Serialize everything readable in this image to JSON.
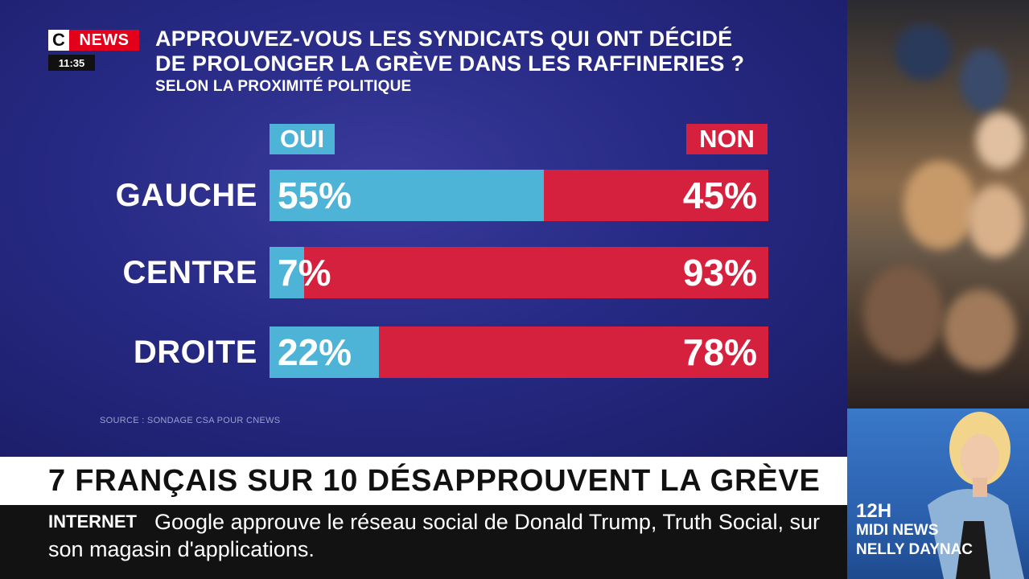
{
  "channel": {
    "logo_c": "C",
    "logo_news": "NEWS",
    "time": "11:35"
  },
  "header": {
    "title_line1": "APPROUVEZ-VOUS LES SYNDICATS QUI ONT DÉCIDÉ",
    "title_line2": "DE PROLONGER LA GRÈVE DANS LES RAFFINERIES ?",
    "subtitle": "SELON LA PROXIMITÉ POLITIQUE"
  },
  "chart_data": {
    "type": "bar",
    "stacked": true,
    "orientation": "horizontal",
    "title": "APPROUVEZ-VOUS LES SYNDICATS QUI ONT DÉCIDÉ DE PROLONGER LA GRÈVE DANS LES RAFFINERIES ?",
    "subtitle": "SELON LA PROXIMITÉ POLITIQUE",
    "categories": [
      "GAUCHE",
      "CENTRE",
      "DROITE"
    ],
    "series": [
      {
        "name": "OUI",
        "values": [
          55,
          7,
          22
        ],
        "labels": [
          "55%",
          "7%",
          "22%"
        ],
        "color": "#4db4d7"
      },
      {
        "name": "NON",
        "values": [
          45,
          93,
          78
        ],
        "labels": [
          "45%",
          "93%",
          "78%"
        ],
        "color": "#d6213e"
      }
    ],
    "xlim": [
      0,
      100
    ],
    "unit": "%",
    "source": "SOURCE : SONDAGE CSA POUR CNEWS"
  },
  "headline": "7 FRANÇAIS SUR 10 DÉSAPPROUVENT LA GRÈVE",
  "ticker": {
    "label": "INTERNET",
    "text": "Google approuve le réseau social de Donald Trump, Truth Social, sur son magasin d'applications."
  },
  "show": {
    "time": "12H",
    "name": "MIDI NEWS",
    "host": "NELLY DAYNAC"
  },
  "colors": {
    "brand_red": "#e3001b",
    "oui": "#4db4d7",
    "non": "#d6213e",
    "background": "#272a84"
  }
}
